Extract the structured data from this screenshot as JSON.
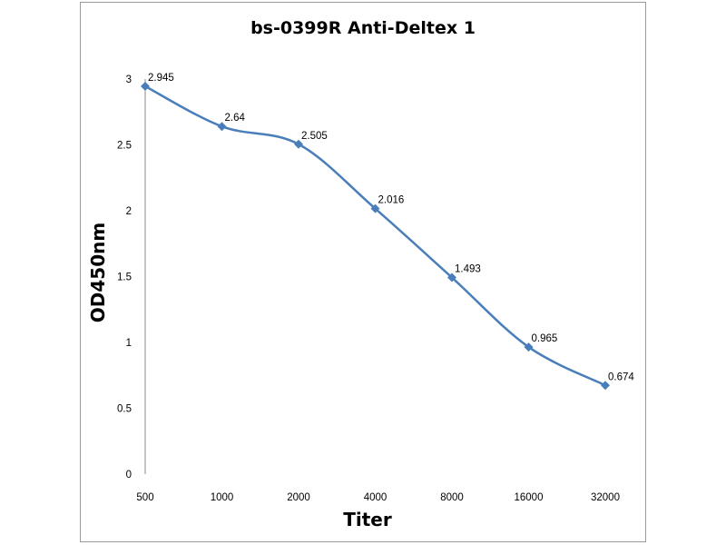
{
  "chart_data": {
    "type": "line",
    "title": "bs-0399R Anti-Deltex 1",
    "xlabel": "Titer",
    "ylabel": "OD450nm",
    "categories": [
      "500",
      "1000",
      "2000",
      "4000",
      "8000",
      "16000",
      "32000"
    ],
    "series": [
      {
        "values": [
          2.945,
          2.64,
          2.505,
          2.016,
          1.493,
          0.965,
          0.674
        ],
        "labels": [
          "2.945",
          "2.64",
          "2.505",
          "2.016",
          "1.493",
          "0.965",
          "0.674"
        ],
        "color": "#4a7ebb"
      }
    ],
    "yticks": [
      "0",
      "0.5",
      "1",
      "1.5",
      "2",
      "2.5",
      "3"
    ],
    "ylim": [
      0,
      3
    ],
    "grid": false,
    "legend": "none",
    "smooth": true,
    "marker": "diamond"
  }
}
